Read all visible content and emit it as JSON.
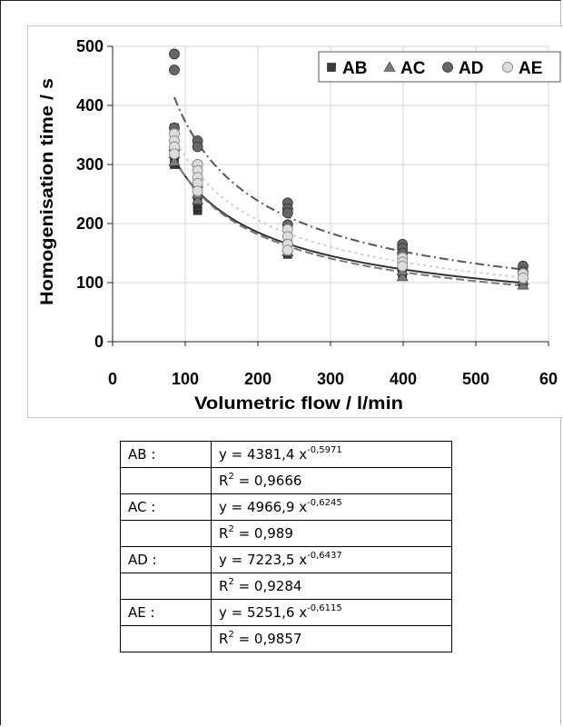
{
  "chart_data": {
    "type": "scatter",
    "title": "",
    "xlabel": "Volumetric flow / l/min",
    "ylabel": "Homogenisation time / s",
    "xlim": [
      0,
      600
    ],
    "ylim": [
      0,
      500
    ],
    "x_ticks": [
      "0",
      "100",
      "200",
      "300",
      "400",
      "500",
      "60"
    ],
    "y_ticks": [
      "0",
      "100",
      "200",
      "300",
      "400",
      "500"
    ],
    "grid": true,
    "legend_position": "top-right",
    "series": [
      {
        "name": "AB",
        "marker": "square",
        "color": "#3a3a3a",
        "line_style": "solid",
        "trend": {
          "a": 4381.4,
          "b": -0.5971
        },
        "points": [
          [
            85,
            300
          ],
          [
            85,
            315
          ],
          [
            85,
            330
          ],
          [
            85,
            362
          ],
          [
            117,
            222
          ],
          [
            117,
            228
          ],
          [
            117,
            235
          ],
          [
            117,
            248
          ],
          [
            117,
            260
          ],
          [
            241,
            148
          ],
          [
            241,
            153
          ],
          [
            241,
            162
          ],
          [
            241,
            170
          ],
          [
            399,
            115
          ],
          [
            399,
            125
          ],
          [
            399,
            133
          ],
          [
            565,
            96
          ],
          [
            565,
            102
          ]
        ]
      },
      {
        "name": "AC",
        "marker": "triangle",
        "color": "#7a7a7a",
        "line_style": "dashed",
        "trend": {
          "a": 4966.9,
          "b": -0.6245
        },
        "points": [
          [
            85,
            305
          ],
          [
            85,
            318
          ],
          [
            85,
            330
          ],
          [
            117,
            240
          ],
          [
            117,
            250
          ],
          [
            117,
            268
          ],
          [
            241,
            152
          ],
          [
            241,
            160
          ],
          [
            241,
            172
          ],
          [
            399,
            110
          ],
          [
            399,
            120
          ],
          [
            399,
            128
          ],
          [
            565,
            96
          ],
          [
            565,
            104
          ]
        ]
      },
      {
        "name": "AD",
        "marker": "circle",
        "color": "#666666",
        "line_style": "dashdot",
        "trend": {
          "a": 7223.5,
          "b": -0.6437
        },
        "points": [
          [
            85,
            487
          ],
          [
            85,
            460
          ],
          [
            85,
            362
          ],
          [
            117,
            340
          ],
          [
            117,
            330
          ],
          [
            117,
            300
          ],
          [
            241,
            235
          ],
          [
            241,
            225
          ],
          [
            241,
            218
          ],
          [
            241,
            198
          ],
          [
            399,
            165
          ],
          [
            399,
            158
          ],
          [
            399,
            150
          ],
          [
            565,
            128
          ],
          [
            565,
            118
          ]
        ]
      },
      {
        "name": "AE",
        "marker": "circle-open",
        "color": "#dddddd",
        "line_style": "dotted",
        "trend": {
          "a": 5251.6,
          "b": -0.6115
        },
        "points": [
          [
            85,
            352
          ],
          [
            85,
            340
          ],
          [
            85,
            330
          ],
          [
            85,
            318
          ],
          [
            117,
            300
          ],
          [
            117,
            290
          ],
          [
            117,
            278
          ],
          [
            117,
            268
          ],
          [
            117,
            255
          ],
          [
            241,
            190
          ],
          [
            241,
            178
          ],
          [
            241,
            165
          ],
          [
            241,
            155
          ],
          [
            399,
            142
          ],
          [
            399,
            135
          ],
          [
            399,
            128
          ],
          [
            565,
            115
          ],
          [
            565,
            108
          ]
        ]
      }
    ]
  },
  "table": {
    "rows": [
      {
        "label": "AB :",
        "eq_pre": "y = 4381,4 x",
        "exp": "-0,5971",
        "r2": "= 0,9666"
      },
      {
        "label": "AC :",
        "eq_pre": "y = 4966,9 x",
        "exp": "-0,6245",
        "r2": "= 0,989"
      },
      {
        "label": "AD :",
        "eq_pre": "y = 7223,5 x",
        "exp": "-0,6437",
        "r2": "= 0,9284"
      },
      {
        "label": "AE  :",
        "eq_pre": "y = 5251,6 x",
        "exp": "-0,6115",
        "r2": "= 0,9857"
      }
    ],
    "r_symbol": "R",
    "r_exp": "2"
  }
}
